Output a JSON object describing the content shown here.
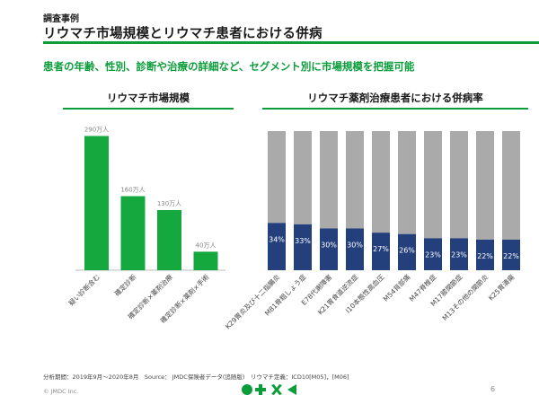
{
  "header": {
    "label": "調査事例",
    "title": "リウマチ市場規模とリウマチ患者における併病"
  },
  "subtitle": "患者の年齢、性別、診断や治療の詳細など、セグメント別に市場規模を把握可能",
  "colors": {
    "accent": "#0b9d3a",
    "bar_green": "#15a83f",
    "bar_navy": "#233f7c",
    "bar_gray": "#aaaaaa"
  },
  "chart_data": [
    {
      "type": "bar",
      "title": "リウマチ市場規模",
      "categories": [
        "疑い診断含む",
        "確定診断",
        "確定診断×薬剤治療",
        "確定診断×薬剤×手術"
      ],
      "values": [
        290,
        160,
        130,
        40
      ],
      "data_labels": [
        "290万人",
        "160万人",
        "130万人",
        "40万人"
      ],
      "unit": "万人",
      "ylim": [
        0,
        320
      ]
    },
    {
      "type": "bar",
      "stacked": true,
      "title": "リウマチ薬剤治療患者における併病率",
      "categories": [
        "K29胃炎及び十二指腸炎",
        "M81骨粗しょう症",
        "E78代謝障害",
        "K21胃食道逆流症",
        "I10本態性高血圧",
        "M54背部痛",
        "M47脊椎症",
        "M17膝関節症",
        "M13その他の関節炎",
        "K25胃潰瘍"
      ],
      "series": [
        {
          "values": [
            34,
            33,
            30,
            30,
            27,
            26,
            23,
            23,
            22,
            22
          ]
        },
        {
          "values": [
            66,
            67,
            70,
            70,
            73,
            74,
            77,
            77,
            78,
            78
          ]
        }
      ],
      "data_labels": [
        "34%",
        "33%",
        "30%",
        "30%",
        "27%",
        "26%",
        "23%",
        "23%",
        "22%",
        "22%"
      ],
      "ylim": [
        0,
        100
      ]
    }
  ],
  "footnote": "分析期間：2019年9月～2020年8月　Source： JMDC保険者データ(追随版)　リウマチ定義：ICD10[M05]，[M06]",
  "copyright": "© JMDC Inc.",
  "page_number": "6",
  "logo_icons": [
    "circle-icon",
    "plus-icon",
    "cross-icon",
    "triangle-icon"
  ]
}
